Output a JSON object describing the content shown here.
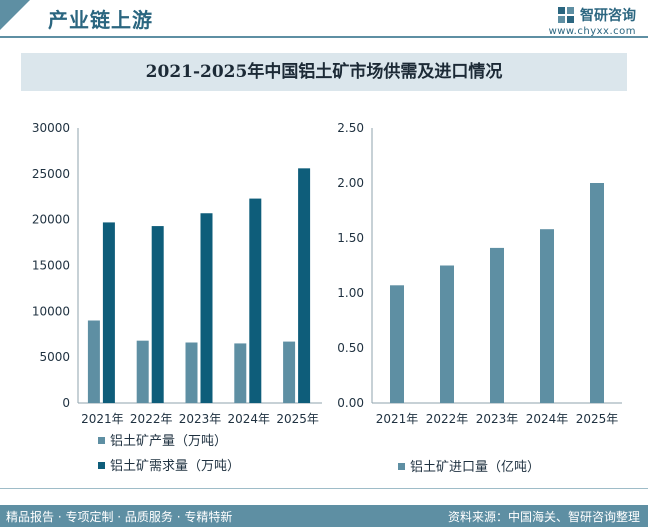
{
  "header": {
    "title": "产业链上游",
    "brand_name": "智研咨询",
    "brand_url": "www.chyxx.com"
  },
  "chart_title": "2021-2025年中国铝土矿市场供需及进口情况",
  "footer": {
    "left": "精品报告 · 专项定制 · 品质服务 · 专精特新",
    "right": "资料来源：中国海关、智研咨询整理"
  },
  "colors": {
    "production": "#5e8fa3",
    "demand": "#0e5d7a",
    "import": "#5e8fa3",
    "accent": "#2b6680"
  },
  "chart_data": [
    {
      "type": "bar",
      "title": "",
      "categories": [
        "2021年",
        "2022年",
        "2023年",
        "2024年",
        "2025年"
      ],
      "series": [
        {
          "name": "铝土矿产量（万吨）",
          "values": [
            9000,
            6800,
            6600,
            6500,
            6700
          ]
        },
        {
          "name": "铝土矿需求量（万吨）",
          "values": [
            19700,
            19300,
            20700,
            22300,
            25600
          ]
        }
      ],
      "ylim": [
        0,
        30000
      ],
      "yticks": [
        "30000",
        "25000",
        "20000",
        "15000",
        "10000",
        "5000",
        "0"
      ],
      "xlabel": "",
      "ylabel": "",
      "legend_position": "bottom-left"
    },
    {
      "type": "bar",
      "title": "",
      "categories": [
        "2021年",
        "2022年",
        "2023年",
        "2024年",
        "2025年"
      ],
      "series": [
        {
          "name": "铝土矿进口量（亿吨）",
          "values": [
            1.07,
            1.25,
            1.41,
            1.58,
            2.0
          ]
        }
      ],
      "ylim": [
        0,
        2.5
      ],
      "yticks": [
        "2.50",
        "2.00",
        "1.50",
        "1.00",
        "0.50",
        "0.00"
      ],
      "xlabel": "",
      "ylabel": "",
      "legend_position": "bottom-right"
    }
  ]
}
